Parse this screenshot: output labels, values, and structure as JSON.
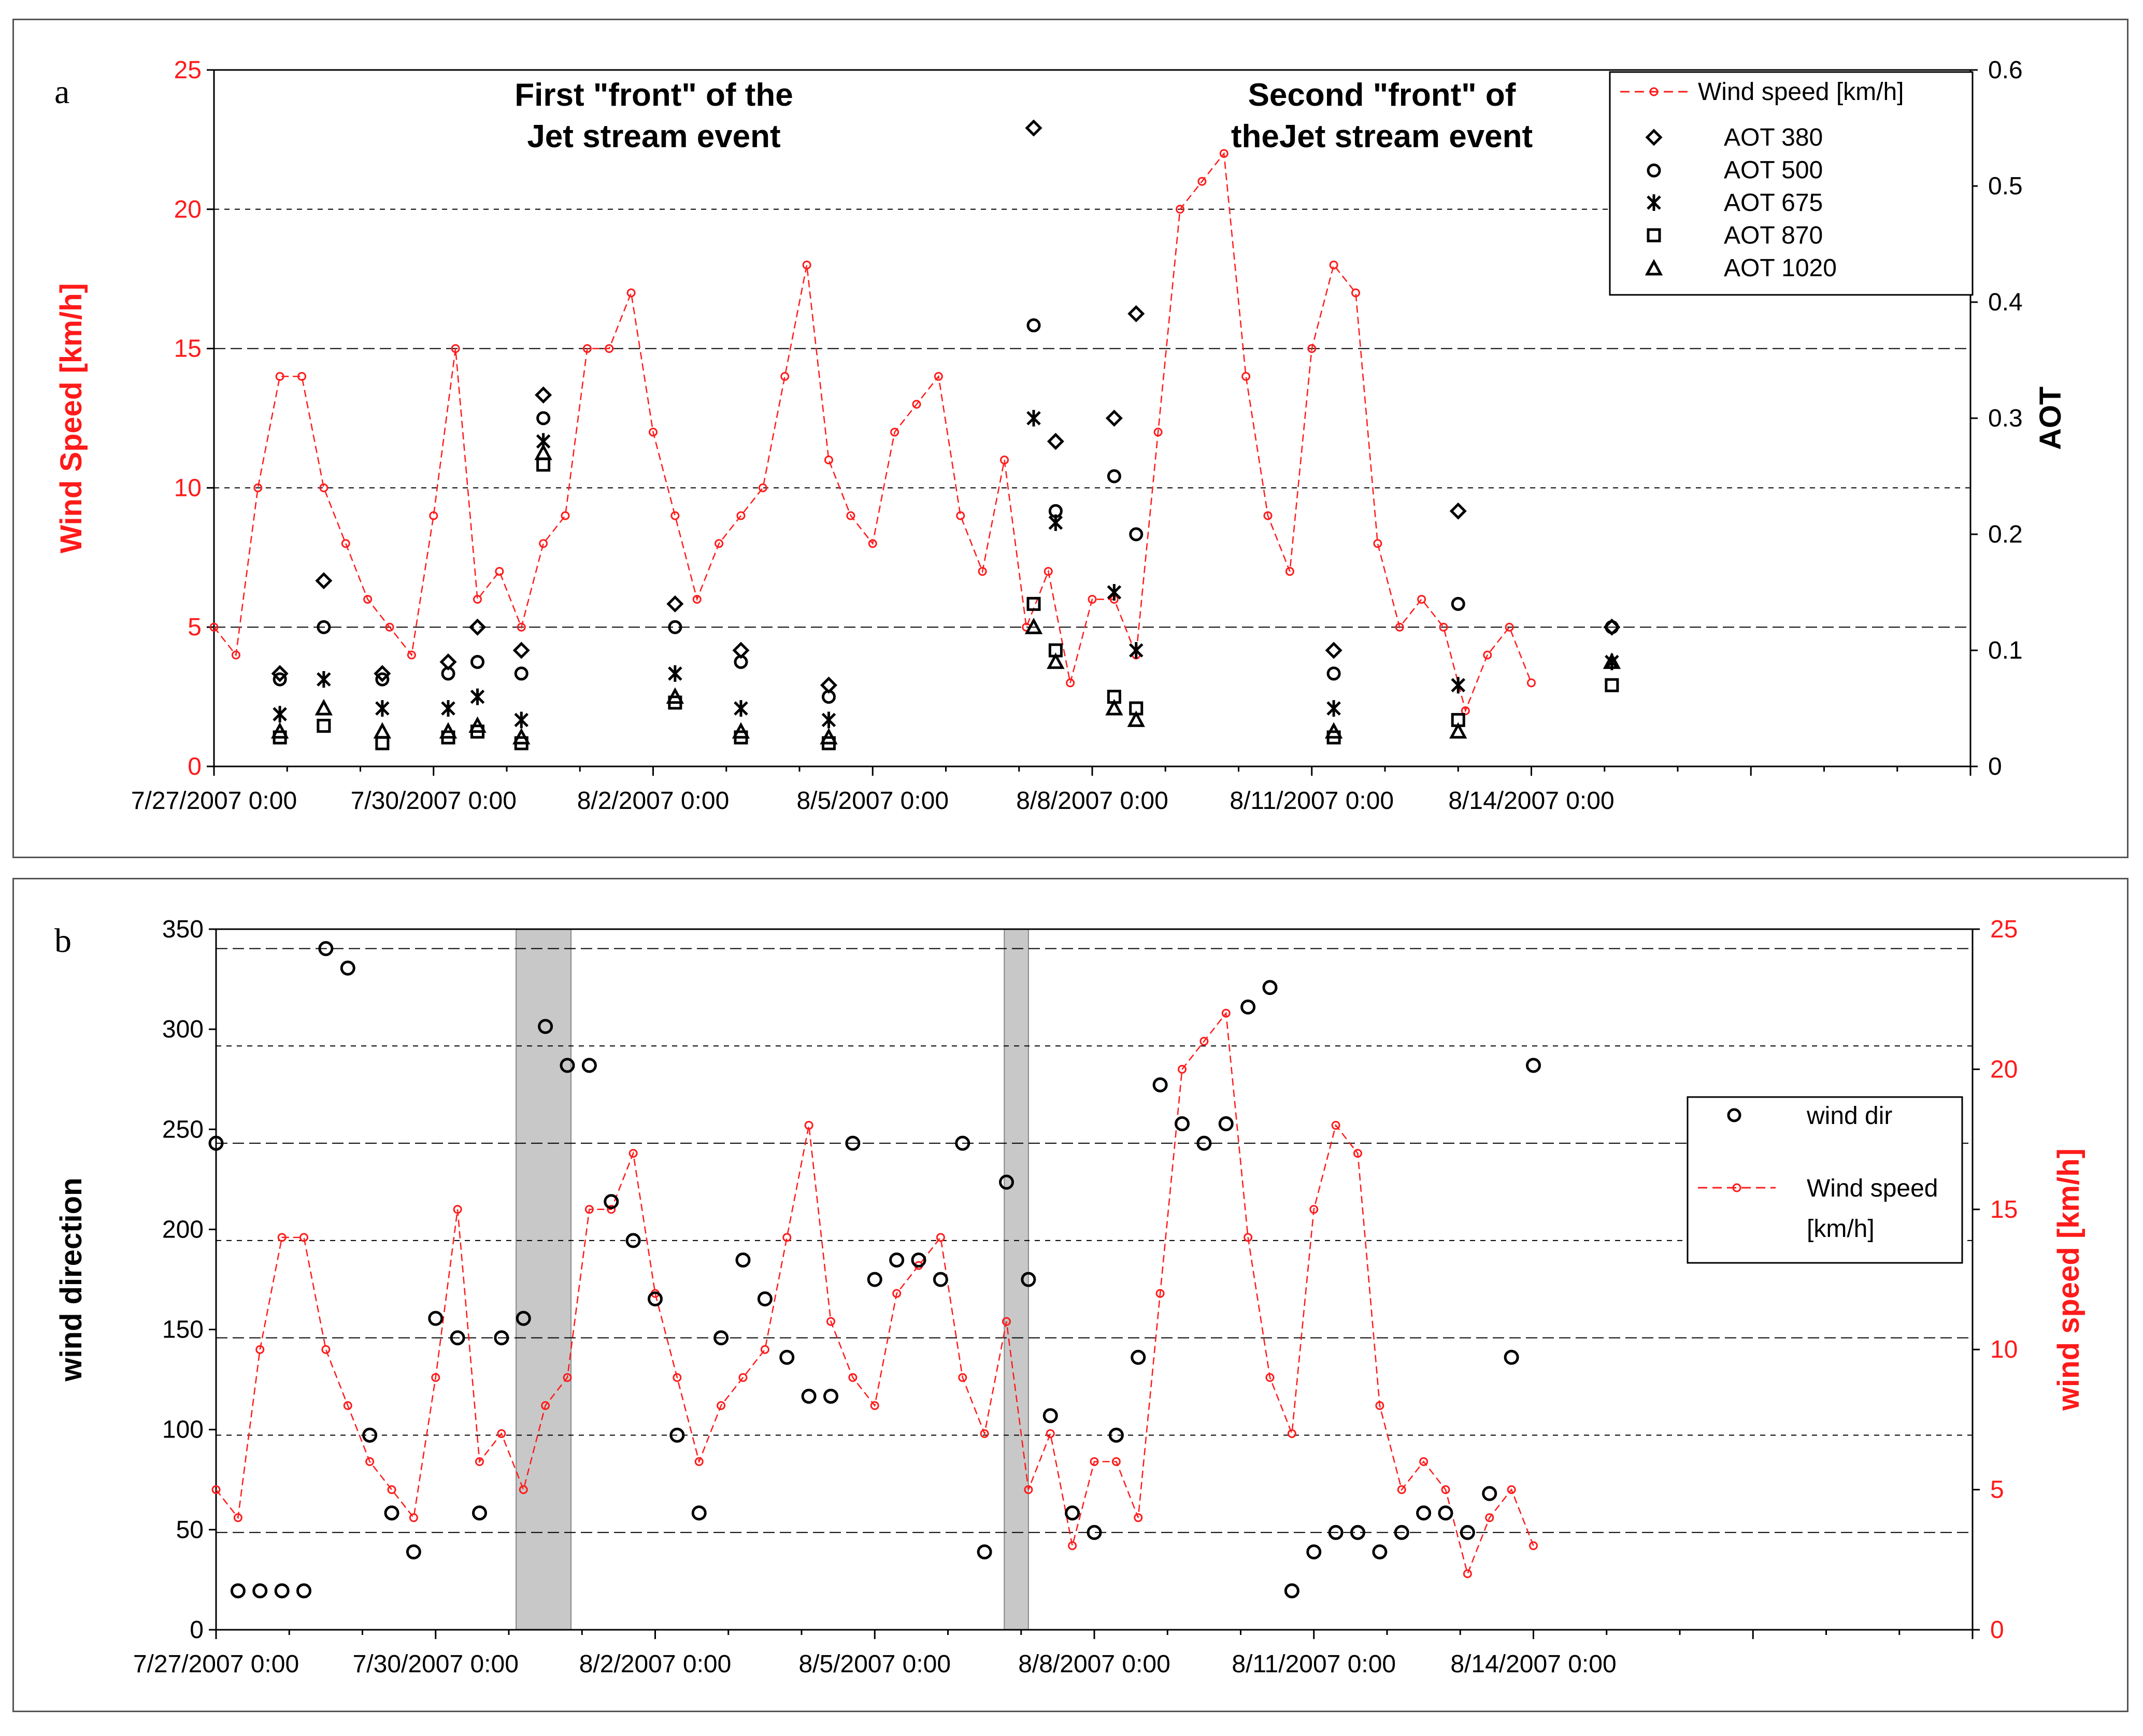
{
  "colors": {
    "wind_speed": "#ff1a1a",
    "aot": "#000000",
    "grid": "#000000",
    "shade": "#c8c8c8"
  },
  "chart_data": [
    {
      "panel_label": "a",
      "type": "line+scatter",
      "title": "",
      "xlabel": "",
      "ylabel_left": "Wind Speed [km/h]",
      "ylabel_right": "AOT",
      "xlim": [
        0,
        24
      ],
      "ylim_left": [
        0,
        25
      ],
      "ylim_right": [
        0,
        0.6
      ],
      "yticks_left": [
        "0",
        "5",
        "10",
        "15",
        "20",
        "25"
      ],
      "yticks_right": [
        "0",
        "0.1",
        "0.2",
        "0.3",
        "0.4",
        "0.5",
        "0.6"
      ],
      "xticks": [
        {
          "label": "7/27/2007 0:00",
          "day": 0
        },
        {
          "label": "7/30/2007 0:00",
          "day": 3
        },
        {
          "label": "8/2/2007 0:00",
          "day": 6
        },
        {
          "label": "8/5/2007 0:00",
          "day": 9
        },
        {
          "label": "8/8/2007 0:00",
          "day": 12
        },
        {
          "label": "8/11/2007 0:00",
          "day": 15
        },
        {
          "label": "8/14/2007 0:00",
          "day": 18
        }
      ],
      "annotations": [
        {
          "line1": "First \"front\" of the",
          "line2": "Jet stream event"
        },
        {
          "line1": "Second \"front\" of",
          "line2": "theJet stream event"
        }
      ],
      "legend": [
        "Wind speed [km/h]",
        "AOT 380",
        "AOT 500",
        "AOT 675",
        "AOT 870",
        "AOT 1020"
      ],
      "legend_position": "top-right",
      "wind_speed": {
        "days": [
          0,
          0.3,
          0.6,
          0.9,
          1.2,
          1.5,
          1.8,
          2.1,
          2.4,
          2.7,
          3.0,
          3.3,
          3.6,
          3.9,
          4.2,
          4.5,
          4.8,
          5.1,
          5.4,
          5.7,
          6.0,
          6.3,
          6.6,
          6.9,
          7.2,
          7.5,
          7.8,
          8.1,
          8.4,
          8.7,
          9.0,
          9.3,
          9.6,
          9.9,
          10.2,
          10.5,
          10.8,
          11.1,
          11.4,
          11.7,
          12.0,
          12.3,
          12.6,
          12.9,
          13.2,
          13.5,
          13.8,
          14.1,
          14.4,
          14.7,
          15.0,
          15.3,
          15.6,
          15.9,
          16.2,
          16.5,
          16.8,
          17.1,
          17.4,
          17.7,
          18.0
        ],
        "values": [
          5,
          4,
          10,
          14,
          14,
          10,
          8,
          6,
          5,
          4,
          9,
          15,
          6,
          7,
          5,
          8,
          9,
          15,
          15,
          17,
          12,
          9,
          6,
          8,
          9,
          10,
          14,
          18,
          11,
          9,
          8,
          12,
          13,
          14,
          9,
          7,
          11,
          5,
          7,
          3,
          6,
          6,
          4,
          12,
          20,
          21,
          22,
          14,
          9,
          7,
          15,
          18,
          17,
          8,
          5,
          6,
          5,
          2,
          4,
          5,
          3
        ]
      },
      "aot": [
        {
          "day": 0.9,
          "aot380": 0.08,
          "aot500": 0.075,
          "aot675": 0.045,
          "aot870": 0.025,
          "aot1020": 0.03
        },
        {
          "day": 1.5,
          "aot380": 0.16,
          "aot500": 0.12,
          "aot675": 0.075,
          "aot870": 0.035,
          "aot1020": 0.05
        },
        {
          "day": 2.3,
          "aot380": 0.08,
          "aot500": 0.075,
          "aot675": 0.05,
          "aot870": 0.02,
          "aot1020": 0.03
        },
        {
          "day": 3.2,
          "aot380": 0.09,
          "aot500": 0.08,
          "aot675": 0.05,
          "aot870": 0.025,
          "aot1020": 0.03
        },
        {
          "day": 3.6,
          "aot380": 0.12,
          "aot500": 0.09,
          "aot675": 0.06,
          "aot870": 0.03,
          "aot1020": 0.035
        },
        {
          "day": 4.2,
          "aot380": 0.1,
          "aot500": 0.08,
          "aot675": 0.04,
          "aot870": 0.02,
          "aot1020": 0.025
        },
        {
          "day": 4.5,
          "aot380": 0.32,
          "aot500": 0.3,
          "aot675": 0.28,
          "aot870": 0.26,
          "aot1020": 0.27
        },
        {
          "day": 6.3,
          "aot380": 0.14,
          "aot500": 0.12,
          "aot675": 0.08,
          "aot870": 0.055,
          "aot1020": 0.06
        },
        {
          "day": 7.2,
          "aot380": 0.1,
          "aot500": 0.09,
          "aot675": 0.05,
          "aot870": 0.025,
          "aot1020": 0.03
        },
        {
          "day": 8.4,
          "aot380": 0.07,
          "aot500": 0.06,
          "aot675": 0.04,
          "aot870": 0.02,
          "aot1020": 0.025
        },
        {
          "day": 11.2,
          "aot380": 0.55,
          "aot500": 0.38,
          "aot675": 0.3,
          "aot870": 0.14,
          "aot1020": 0.12
        },
        {
          "day": 11.5,
          "aot380": 0.28,
          "aot500": 0.22,
          "aot675": 0.21,
          "aot870": 0.1,
          "aot1020": 0.09
        },
        {
          "day": 12.3,
          "aot380": 0.3,
          "aot500": 0.25,
          "aot675": 0.15,
          "aot870": 0.06,
          "aot1020": 0.05
        },
        {
          "day": 12.6,
          "aot380": 0.39,
          "aot500": 0.2,
          "aot675": 0.1,
          "aot870": 0.05,
          "aot1020": 0.04
        },
        {
          "day": 15.3,
          "aot380": 0.1,
          "aot500": 0.08,
          "aot675": 0.05,
          "aot870": 0.025,
          "aot1020": 0.03
        },
        {
          "day": 17.0,
          "aot380": 0.22,
          "aot500": 0.14,
          "aot675": 0.07,
          "aot870": 0.04,
          "aot1020": 0.03
        },
        {
          "day": 19.1,
          "aot380": 0.12,
          "aot500": 0.12,
          "aot675": 0.09,
          "aot870": 0.07,
          "aot1020": 0.09
        }
      ]
    },
    {
      "panel_label": "b",
      "type": "line+scatter",
      "title": "",
      "xlabel": "",
      "ylabel_left": "wind direction",
      "ylabel_right": "wind speed [km/h]",
      "xlim": [
        0,
        24
      ],
      "ylim_left": [
        0,
        360
      ],
      "ylim_right": [
        0,
        25
      ],
      "yticks_left": [
        "0",
        "50",
        "100",
        "150",
        "200",
        "250",
        "300",
        "350"
      ],
      "yticks_right": [
        "0",
        "5",
        "10",
        "15",
        "20",
        "25"
      ],
      "xticks": [
        {
          "label": "7/27/2007 0:00",
          "day": 0
        },
        {
          "label": "7/30/2007 0:00",
          "day": 3
        },
        {
          "label": "8/2/2007 0:00",
          "day": 6
        },
        {
          "label": "8/5/2007 0:00",
          "day": 9
        },
        {
          "label": "8/8/2007 0:00",
          "day": 12
        },
        {
          "label": "8/11/2007 0:00",
          "day": 15
        },
        {
          "label": "8/14/2007 0:00",
          "day": 18
        }
      ],
      "shaded_intervals_days": [
        [
          4.1,
          4.85
        ],
        [
          10.77,
          11.1
        ]
      ],
      "legend": [
        "wind dir",
        "Wind speed",
        "[km/h]"
      ],
      "legend_position": "right",
      "wind_dir": {
        "days": [
          0,
          0.3,
          0.6,
          0.9,
          1.2,
          1.5,
          1.8,
          2.1,
          2.4,
          2.7,
          3.0,
          3.3,
          3.6,
          3.9,
          4.2,
          4.5,
          4.8,
          5.1,
          5.4,
          5.7,
          6.0,
          6.3,
          6.6,
          6.9,
          7.2,
          7.5,
          7.8,
          8.1,
          8.4,
          8.7,
          9.0,
          9.3,
          9.6,
          9.9,
          10.2,
          10.5,
          10.8,
          11.1,
          11.4,
          11.7,
          12.0,
          12.3,
          12.6,
          12.9,
          13.2,
          13.5,
          13.8,
          14.1,
          14.4,
          14.7,
          15.0,
          15.3,
          15.6,
          15.9,
          16.2,
          16.5,
          16.8,
          17.1,
          17.4,
          17.7,
          18.0
        ],
        "values": [
          250,
          20,
          20,
          20,
          20,
          350,
          340,
          100,
          60,
          40,
          160,
          150,
          60,
          150,
          160,
          310,
          290,
          290,
          220,
          200,
          170,
          100,
          60,
          150,
          190,
          170,
          140,
          120,
          120,
          250,
          180,
          190,
          190,
          180,
          250,
          40,
          230,
          180,
          110,
          60,
          50,
          100,
          140,
          280,
          260,
          250,
          260,
          320,
          330,
          20,
          40,
          50,
          50,
          40,
          50,
          60,
          60,
          50,
          70,
          140,
          290
        ]
      },
      "wind_speed": {
        "days": [
          0,
          0.3,
          0.6,
          0.9,
          1.2,
          1.5,
          1.8,
          2.1,
          2.4,
          2.7,
          3.0,
          3.3,
          3.6,
          3.9,
          4.2,
          4.5,
          4.8,
          5.1,
          5.4,
          5.7,
          6.0,
          6.3,
          6.6,
          6.9,
          7.2,
          7.5,
          7.8,
          8.1,
          8.4,
          8.7,
          9.0,
          9.3,
          9.6,
          9.9,
          10.2,
          10.5,
          10.8,
          11.1,
          11.4,
          11.7,
          12.0,
          12.3,
          12.6,
          12.9,
          13.2,
          13.5,
          13.8,
          14.1,
          14.4,
          14.7,
          15.0,
          15.3,
          15.6,
          15.9,
          16.2,
          16.5,
          16.8,
          17.1,
          17.4,
          17.7,
          18.0
        ],
        "values": [
          5,
          4,
          10,
          14,
          14,
          10,
          8,
          6,
          5,
          4,
          9,
          15,
          6,
          7,
          5,
          8,
          9,
          15,
          15,
          17,
          12,
          9,
          6,
          8,
          9,
          10,
          14,
          18,
          11,
          9,
          8,
          12,
          13,
          14,
          9,
          7,
          11,
          5,
          7,
          3,
          6,
          6,
          4,
          12,
          20,
          21,
          22,
          14,
          9,
          7,
          15,
          18,
          17,
          8,
          5,
          6,
          5,
          2,
          4,
          5,
          3
        ]
      }
    }
  ]
}
